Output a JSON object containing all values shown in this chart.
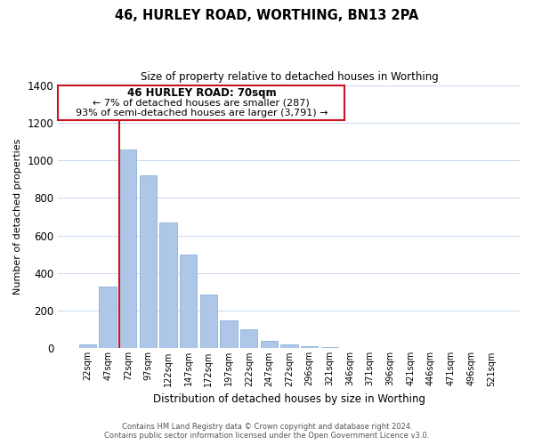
{
  "title": "46, HURLEY ROAD, WORTHING, BN13 2PA",
  "subtitle": "Size of property relative to detached houses in Worthing",
  "xlabel": "Distribution of detached houses by size in Worthing",
  "ylabel": "Number of detached properties",
  "bar_labels": [
    "22sqm",
    "47sqm",
    "72sqm",
    "97sqm",
    "122sqm",
    "147sqm",
    "172sqm",
    "197sqm",
    "222sqm",
    "247sqm",
    "272sqm",
    "296sqm",
    "321sqm",
    "346sqm",
    "371sqm",
    "396sqm",
    "421sqm",
    "446sqm",
    "471sqm",
    "496sqm",
    "521sqm"
  ],
  "bar_values": [
    20,
    327,
    1055,
    920,
    670,
    500,
    285,
    150,
    100,
    42,
    22,
    10,
    5,
    1,
    0,
    0,
    0,
    0,
    0,
    0,
    0
  ],
  "bar_color": "#aec6e8",
  "bar_edge_color": "#8ab0d8",
  "highlight_bar_index": 2,
  "highlight_color": "#cc1122",
  "ylim": [
    0,
    1400
  ],
  "yticks": [
    0,
    200,
    400,
    600,
    800,
    1000,
    1200,
    1400
  ],
  "annotation_title": "46 HURLEY ROAD: 70sqm",
  "annotation_line1": "← 7% of detached houses are smaller (287)",
  "annotation_line2": "93% of semi-detached houses are larger (3,791) →",
  "footer1": "Contains HM Land Registry data © Crown copyright and database right 2024.",
  "footer2": "Contains public sector information licensed under the Open Government Licence v3.0.",
  "background_color": "#ffffff",
  "grid_color": "#c8d8ec"
}
